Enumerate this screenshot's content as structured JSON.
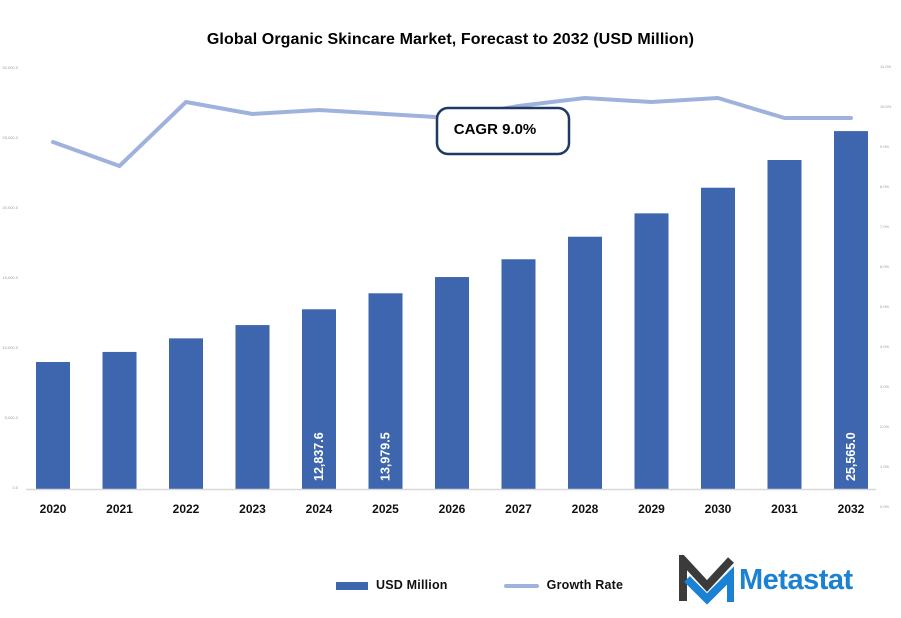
{
  "title": "Global Organic Skincare Market, Forecast to 2032 (USD Million)",
  "annotation": {
    "label": "CAGR 9.0%"
  },
  "legend": {
    "bar_label": "USD Million",
    "line_label": "Growth Rate"
  },
  "logo": {
    "text": "Metastat"
  },
  "colors": {
    "bar": "#3E66AE",
    "line": "#9FB2DE",
    "bar_label_text": "#ffffff",
    "annotation_border": "#1F3864",
    "annotation_fill": "#ffffff",
    "axis_line": "#D8D8D8",
    "tick_text": "#9b9b9b",
    "year_text": "#111111",
    "logo_blue": "#1B81D3",
    "logo_dark": "#3B3B3B"
  },
  "chart_data": {
    "type": "bar",
    "combo": "bar+line",
    "title": "Global Organic Skincare Market, Forecast to 2032 (USD Million)",
    "categories": [
      "2020",
      "2021",
      "2022",
      "2023",
      "2024",
      "2025",
      "2026",
      "2027",
      "2028",
      "2029",
      "2030",
      "2031",
      "2032"
    ],
    "series": [
      {
        "name": "USD Million",
        "type": "bar",
        "axis": "left",
        "values": [
          9070,
          9790,
          10760,
          11710,
          12837.6,
          13979.5,
          15140,
          16410,
          18020,
          19690,
          21520,
          23500,
          25565.0
        ],
        "data_labels": {
          "4": "12,837.6",
          "5": "13,979.5",
          "12": "25,565.0"
        }
      },
      {
        "name": "Growth Rate",
        "type": "line",
        "axis": "right",
        "values": [
          9.1,
          8.5,
          10.1,
          9.8,
          9.9,
          9.8,
          9.7,
          10.0,
          10.2,
          10.1,
          10.2,
          9.7,
          9.7
        ]
      }
    ],
    "left_axis": {
      "min": 0,
      "max": 30000,
      "step": 5000,
      "tick_labels": [
        "30,000.0",
        "25,000.0",
        "20,000.0",
        "15,000.0",
        "10,000.0",
        "5,000.0",
        "0.0"
      ]
    },
    "right_axis": {
      "min": 0,
      "max": 11,
      "step": 1,
      "tick_labels": [
        "11.0%",
        "10.0%",
        "9.0%",
        "8.0%",
        "7.0%",
        "6.0%",
        "5.0%",
        "4.0%",
        "3.0%",
        "2.0%",
        "1.0%",
        "0.0%"
      ]
    },
    "annotation": "CAGR 9.0%",
    "xlabel": "",
    "ylabel": "",
    "grid": false,
    "legend_position": "bottom"
  }
}
